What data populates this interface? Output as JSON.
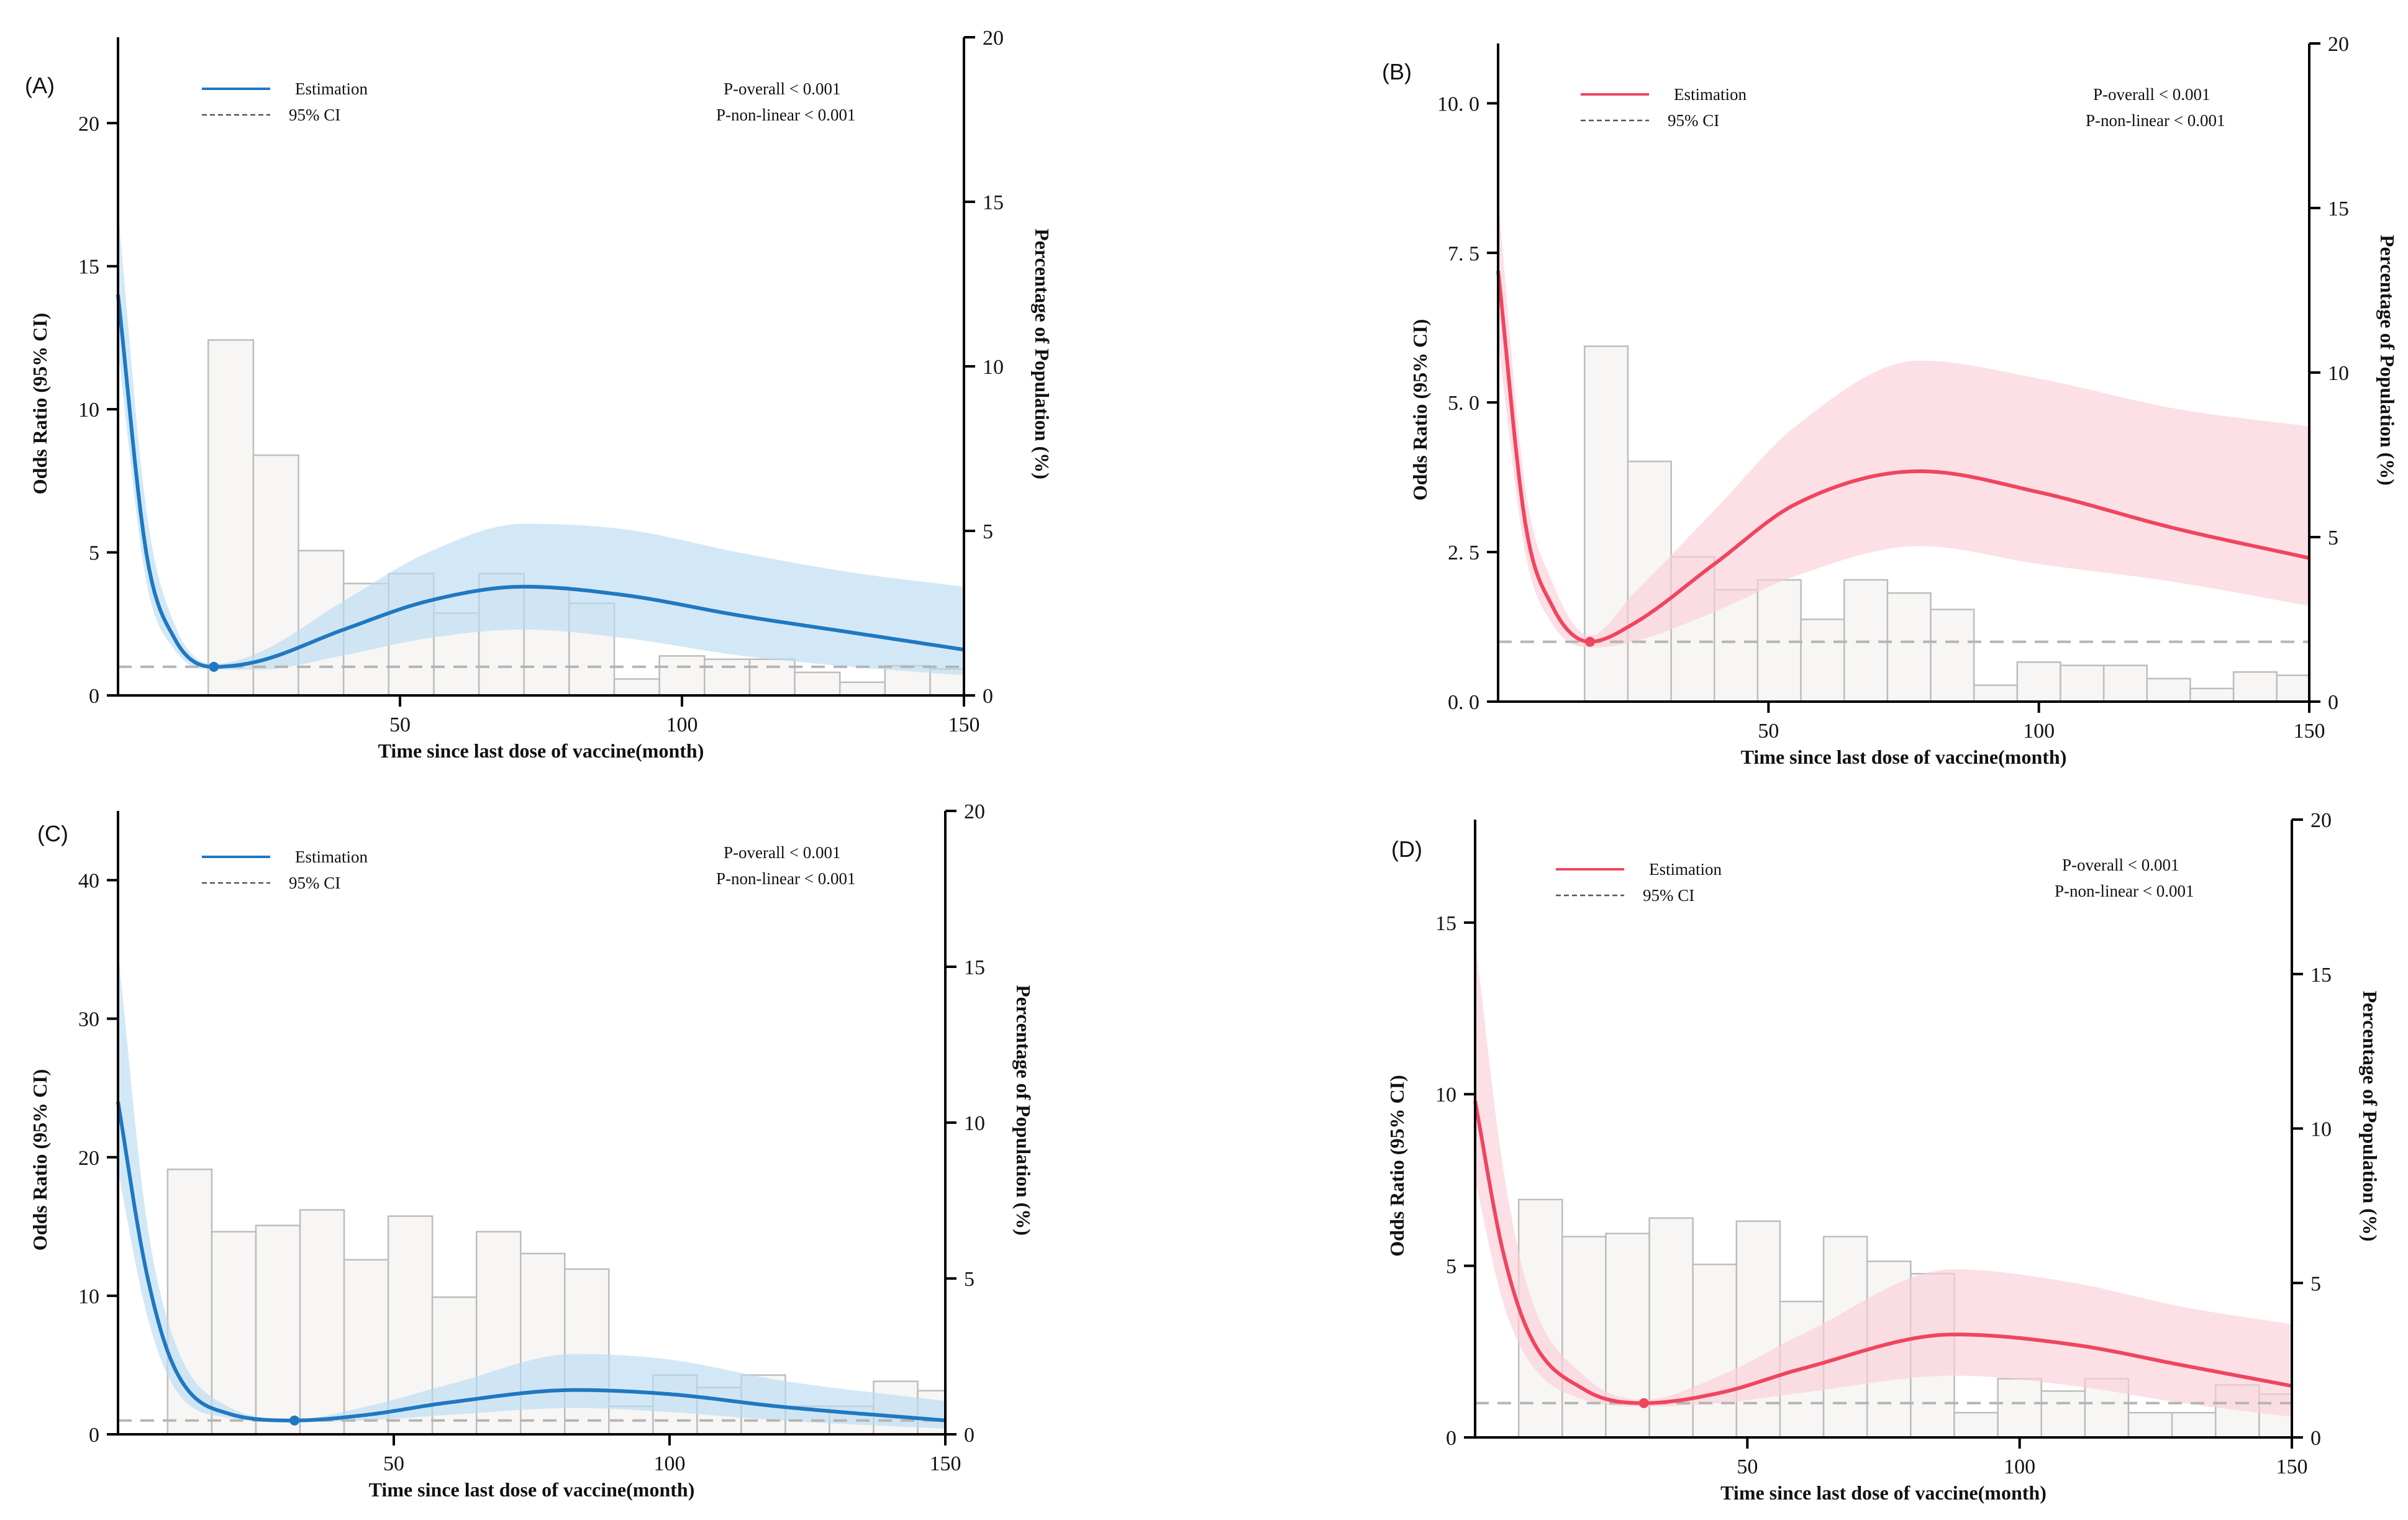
{
  "chart_data": [
    {
      "panel": "(A)",
      "type": "line",
      "xlabel": "Time since last dose of vaccine(month)",
      "ylabel": "Odds Ratio (95% CI)",
      "y2label": "Percentage of Population (%)",
      "xlim": [
        0,
        150
      ],
      "ylim": [
        0,
        23
      ],
      "y2lim": [
        0,
        20
      ],
      "xticks": [
        50,
        100,
        150
      ],
      "yticks": [
        0,
        5,
        10,
        15,
        20
      ],
      "y2ticks": [
        0,
        5,
        10,
        15,
        20
      ],
      "color": "#1f78c1",
      "band_color": "#bcdcf2",
      "legend": {
        "estimation": "Estimation",
        "ci": "95% CI",
        "position": "top-left"
      },
      "p_overall": "P-overall < 0.001",
      "p_nonlinear": "P-non-linear < 0.001",
      "reference_or": 1,
      "reference_point": {
        "x": 17,
        "y": 1
      },
      "estimate": {
        "x": [
          0,
          5,
          10,
          17,
          25,
          40,
          55,
          72,
          90,
          110,
          130,
          150
        ],
        "y": [
          14,
          5,
          2,
          1,
          1.2,
          2.3,
          3.3,
          3.8,
          3.5,
          2.8,
          2.2,
          1.6
        ]
      },
      "ci_lower": [
        12,
        4,
        1.6,
        0.9,
        0.9,
        1.4,
        2.0,
        2.3,
        2.0,
        1.4,
        1.0,
        0.7
      ],
      "ci_upper": [
        17,
        6.5,
        2.5,
        1.1,
        1.5,
        3.3,
        5.0,
        6.0,
        5.8,
        5.0,
        4.3,
        3.8
      ],
      "histogram": {
        "bin_edges": [
          16,
          24,
          32,
          40,
          48,
          56,
          64,
          72,
          80,
          88,
          96,
          104,
          112,
          120,
          128,
          136,
          144,
          150
        ],
        "percent": [
          10.8,
          7.3,
          4.4,
          3.4,
          3.7,
          2.5,
          3.7,
          3.3,
          2.8,
          0.5,
          1.2,
          1.1,
          1.1,
          0.7,
          0.4,
          0.9,
          0.8
        ]
      }
    },
    {
      "panel": "(B)",
      "type": "line",
      "xlabel": "Time since last dose of vaccine(month)",
      "ylabel": "Odds Ratio (95% CI)",
      "y2label": "Percentage of Population (%)",
      "xlim": [
        0,
        150
      ],
      "ylim": [
        0,
        11
      ],
      "y2lim": [
        0,
        20
      ],
      "xticks": [
        50,
        100,
        150
      ],
      "yticks": [
        0.0,
        2.5,
        5.0,
        7.5,
        10.0
      ],
      "ytick_labels": [
        "0. 0",
        "2. 5",
        "5. 0",
        "7. 5",
        "10. 0"
      ],
      "y2ticks": [
        0,
        5,
        10,
        15,
        20
      ],
      "color": "#f0455f",
      "band_color": "#fbd0d8",
      "legend": {
        "estimation": "Estimation",
        "ci": "95% CI",
        "position": "top-left"
      },
      "p_overall": "P-overall < 0.001",
      "p_nonlinear": "P-non-linear  < 0.001",
      "reference_or": 1,
      "reference_point": {
        "x": 17,
        "y": 1
      },
      "estimate": {
        "x": [
          0,
          5,
          10,
          17,
          25,
          40,
          55,
          78,
          100,
          125,
          150
        ],
        "y": [
          7.2,
          3.0,
          1.6,
          1.0,
          1.3,
          2.3,
          3.3,
          3.85,
          3.5,
          2.9,
          2.4
        ]
      },
      "ci_lower": [
        6.0,
        2.5,
        1.3,
        0.9,
        1.0,
        1.5,
        2.1,
        2.6,
        2.3,
        2.0,
        1.6
      ],
      "ci_upper": [
        8.4,
        3.6,
        2.0,
        1.1,
        1.8,
        3.2,
        4.6,
        5.7,
        5.4,
        4.9,
        4.6
      ],
      "histogram": {
        "bin_edges": [
          16,
          24,
          32,
          40,
          48,
          56,
          64,
          72,
          80,
          88,
          96,
          104,
          112,
          120,
          128,
          136,
          144,
          150
        ],
        "percent": [
          10.8,
          7.3,
          4.4,
          3.4,
          3.7,
          2.5,
          3.7,
          3.3,
          2.8,
          0.5,
          1.2,
          1.1,
          1.1,
          0.7,
          0.4,
          0.9,
          0.8
        ]
      }
    },
    {
      "panel": "(C)",
      "type": "line",
      "xlabel": "Time since last dose of vaccine(month)",
      "ylabel": "Odds Ratio (95% CI)",
      "y2label": "Percentage of Population (%)",
      "xlim": [
        0,
        150
      ],
      "ylim": [
        0,
        45
      ],
      "y2lim": [
        0,
        20
      ],
      "xticks": [
        50,
        100,
        150
      ],
      "yticks": [
        0,
        10,
        20,
        30,
        40
      ],
      "y2ticks": [
        0,
        5,
        10,
        15,
        20
      ],
      "color": "#1f78c1",
      "band_color": "#bcdcf2",
      "legend": {
        "estimation": "Estimation",
        "ci": "95% CI",
        "position": "top-left"
      },
      "p_overall": "P-overall < 0.001",
      "p_nonlinear": "P-non-linear < 0.001",
      "reference_or": 1,
      "reference_point": {
        "x": 32,
        "y": 1
      },
      "estimate": {
        "x": [
          0,
          5,
          10,
          20,
          32,
          45,
          60,
          83,
          100,
          120,
          150
        ],
        "y": [
          24,
          12,
          5,
          1.5,
          1.0,
          1.4,
          2.3,
          3.2,
          2.9,
          2.0,
          1.0
        ]
      },
      "ci_lower": [
        19,
        9,
        3.5,
        1.2,
        0.9,
        1.0,
        1.4,
        1.9,
        1.6,
        1.0,
        0.4
      ],
      "ci_upper": [
        35,
        16,
        7,
        2.0,
        1.1,
        2.0,
        3.6,
        5.8,
        5.4,
        3.9,
        2.4
      ],
      "histogram": {
        "bin_edges": [
          9,
          17,
          25,
          33,
          41,
          49,
          57,
          65,
          73,
          81,
          89,
          97,
          105,
          113,
          121,
          129,
          137,
          145,
          150
        ],
        "percent": [
          8.5,
          6.5,
          6.7,
          7.2,
          5.6,
          7.0,
          4.4,
          6.5,
          5.8,
          5.3,
          0.9,
          1.9,
          1.5,
          1.9,
          0.9,
          0.9,
          1.7,
          1.4
        ]
      }
    },
    {
      "panel": "(D)",
      "type": "line",
      "xlabel": "Time since last dose of vaccine(month)",
      "ylabel": "Odds Ratio (95% CI)",
      "y2label": "Percentage of Population (%)",
      "xlim": [
        0,
        150
      ],
      "ylim": [
        0,
        18
      ],
      "y2lim": [
        0,
        20
      ],
      "xticks": [
        50,
        100,
        150
      ],
      "yticks": [
        0,
        5,
        10,
        15
      ],
      "y2ticks": [
        0,
        5,
        10,
        15,
        20
      ],
      "color": "#f0455f",
      "band_color": "#fbd0d8",
      "legend": {
        "estimation": "Estimation",
        "ci": "95% CI",
        "position": "top-left"
      },
      "p_overall": "P-overall < 0.001",
      "p_nonlinear": "P-non-linear < 0.001",
      "reference_or": 1,
      "reference_point": {
        "x": 31,
        "y": 1
      },
      "estimate": {
        "x": [
          0,
          5,
          10,
          20,
          31,
          45,
          60,
          88,
          110,
          130,
          150
        ],
        "y": [
          9.8,
          5.5,
          3.0,
          1.4,
          1.0,
          1.3,
          2.0,
          3.0,
          2.7,
          2.1,
          1.5
        ]
      },
      "ci_lower": [
        7.5,
        4.0,
        2.2,
        1.1,
        0.9,
        1.0,
        1.3,
        1.8,
        1.5,
        1.0,
        0.6
      ],
      "ci_upper": [
        14.5,
        8.0,
        4.2,
        1.8,
        1.1,
        1.8,
        3.0,
        4.9,
        4.5,
        3.8,
        3.3
      ],
      "histogram": {
        "bin_edges": [
          8,
          16,
          24,
          32,
          40,
          48,
          56,
          64,
          72,
          80,
          88,
          96,
          104,
          112,
          120,
          128,
          136,
          144,
          150
        ],
        "percent": [
          7.7,
          6.5,
          6.6,
          7.1,
          5.6,
          7.0,
          4.4,
          6.5,
          5.7,
          5.3,
          0.8,
          1.9,
          1.5,
          1.9,
          0.8,
          0.8,
          1.7,
          1.4
        ]
      }
    }
  ]
}
